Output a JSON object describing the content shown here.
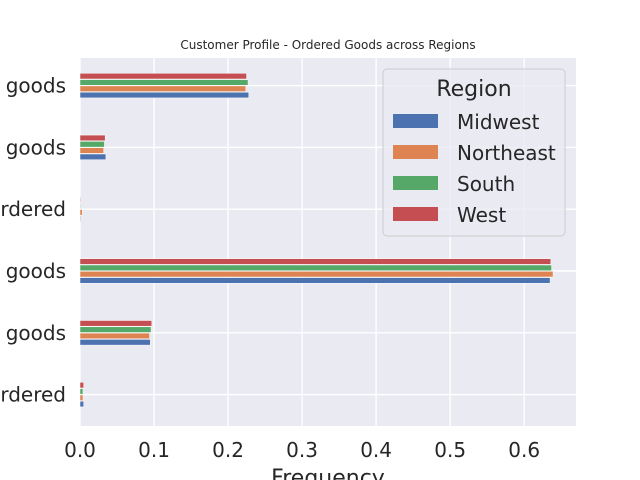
{
  "chart_data": {
    "type": "bar",
    "orientation": "horizontal",
    "title": "Customer Profile - Ordered Goods across Regions",
    "xlabel": "Frequency",
    "ylabel": "",
    "xlim": [
      0,
      0.67
    ],
    "x_ticks": [
      "0.0",
      "0.1",
      "0.2",
      "0.3",
      "0.4",
      "0.5",
      "0.6"
    ],
    "grid": true,
    "categories": [
      "goods",
      "goods",
      "rdered",
      "goods",
      "goods",
      "rdered"
    ],
    "series": [
      {
        "name": "Midwest",
        "color": "#4c72b0",
        "values": [
          0.228,
          0.035,
          0.001,
          0.635,
          0.095,
          0.005
        ]
      },
      {
        "name": "Northeast",
        "color": "#dd8452",
        "values": [
          0.224,
          0.032,
          0.003,
          0.639,
          0.094,
          0.004
        ]
      },
      {
        "name": "South",
        "color": "#55a868",
        "values": [
          0.227,
          0.033,
          0.001,
          0.637,
          0.096,
          0.004
        ]
      },
      {
        "name": "West",
        "color": "#c44e52",
        "values": [
          0.225,
          0.034,
          0.001,
          0.636,
          0.097,
          0.005
        ]
      }
    ],
    "legend": {
      "title": "Region",
      "position": "top-right"
    }
  }
}
